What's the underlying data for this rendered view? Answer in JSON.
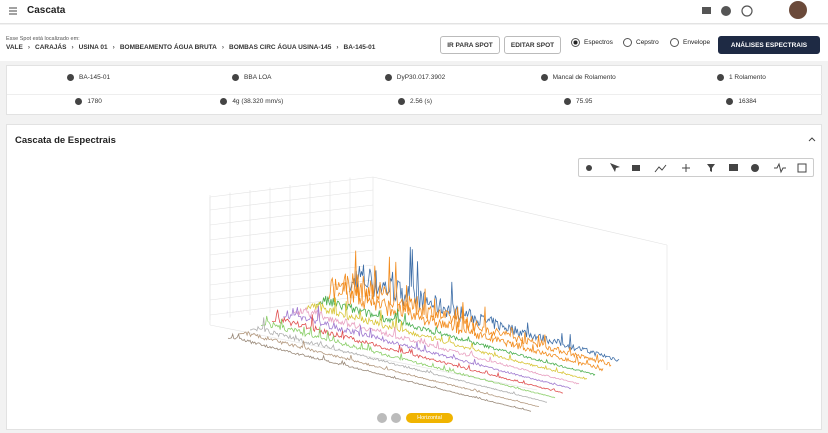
{
  "header": {
    "title": "Cascata"
  },
  "breadcrumb": {
    "caption": "Esse Spot está localizado em:",
    "items": [
      "VALE",
      "CARAJÁS",
      "USINA 01",
      "BOMBEAMENTO ÁGUA BRUTA",
      "BOMBAS CIRC ÁGUA USINA-145",
      "BA-145-01"
    ]
  },
  "actions": {
    "goto": "IR PARA SPOT",
    "edit": "EDITAR SPOT",
    "radios": [
      "Espectros",
      "Cepstro",
      "Envelope"
    ],
    "primary": "ANÁLISES ESPECTRAIS"
  },
  "info": {
    "rows": [
      [
        "BA-145-01",
        "BBA LOA",
        "DyP30.017.3902",
        "Mancal de Rolamento",
        "1 Rolamento"
      ],
      [
        "1780",
        "4g (38.320 mm/s)",
        "2.56 (s)",
        "75.95",
        "16384"
      ]
    ]
  },
  "panel": {
    "title": "Cascata de Espectrais"
  },
  "controls": {
    "mode": "Horizontal"
  }
}
